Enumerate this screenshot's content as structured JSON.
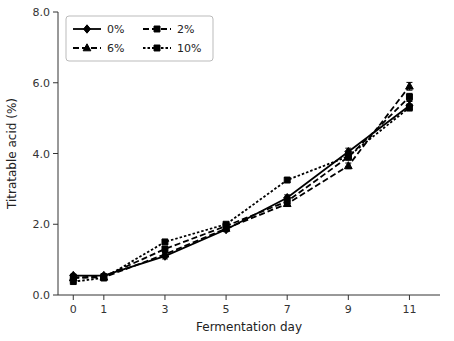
{
  "chart_data": {
    "type": "line",
    "x": [
      0,
      1,
      3,
      5,
      7,
      9,
      11
    ],
    "series": [
      {
        "name": "0%",
        "color": "#000000",
        "line_style": "solid",
        "marker": "diamond",
        "values": [
          0.55,
          0.55,
          1.1,
          1.85,
          2.75,
          4.05,
          5.35
        ],
        "errors": [
          0.04,
          0.03,
          0.08,
          0.06,
          0.08,
          0.1,
          0.12
        ]
      },
      {
        "name": "2%",
        "color": "#000000",
        "line_style": "dashed",
        "marker": "square",
        "values": [
          0.5,
          0.52,
          1.3,
          1.95,
          2.65,
          3.9,
          5.6
        ],
        "errors": [
          0.04,
          0.03,
          0.06,
          0.05,
          0.07,
          0.09,
          0.1
        ]
      },
      {
        "name": "6%",
        "color": "#000000",
        "line_style": "dashed",
        "marker": "triangle",
        "values": [
          0.48,
          0.5,
          1.15,
          1.88,
          2.58,
          3.65,
          5.9
        ],
        "errors": [
          0.03,
          0.03,
          0.05,
          0.05,
          0.07,
          0.08,
          0.11
        ]
      },
      {
        "name": "10%",
        "color": "#000000",
        "line_style": "dotted",
        "marker": "square",
        "values": [
          0.38,
          0.48,
          1.5,
          2.0,
          3.25,
          3.92,
          5.3
        ],
        "errors": [
          0.03,
          0.03,
          0.06,
          0.05,
          0.07,
          0.08,
          0.1
        ]
      }
    ],
    "xlabel": "Fermentation day",
    "ylabel": "Titratable acid (%)",
    "xlim": [
      -0.5,
      12.0
    ],
    "ylim": [
      0.0,
      8.0
    ],
    "xticks": [
      0,
      1,
      3,
      5,
      7,
      9,
      11
    ],
    "yticks": [
      {
        "value": 0.0,
        "label": "0.0"
      },
      {
        "value": 2.0,
        "label": "2.0"
      },
      {
        "value": 4.0,
        "label": "4.0"
      },
      {
        "value": 6.0,
        "label": "6.0"
      },
      {
        "value": 8.0,
        "label": "8.0"
      }
    ],
    "grid": false,
    "legend": "upper left"
  }
}
